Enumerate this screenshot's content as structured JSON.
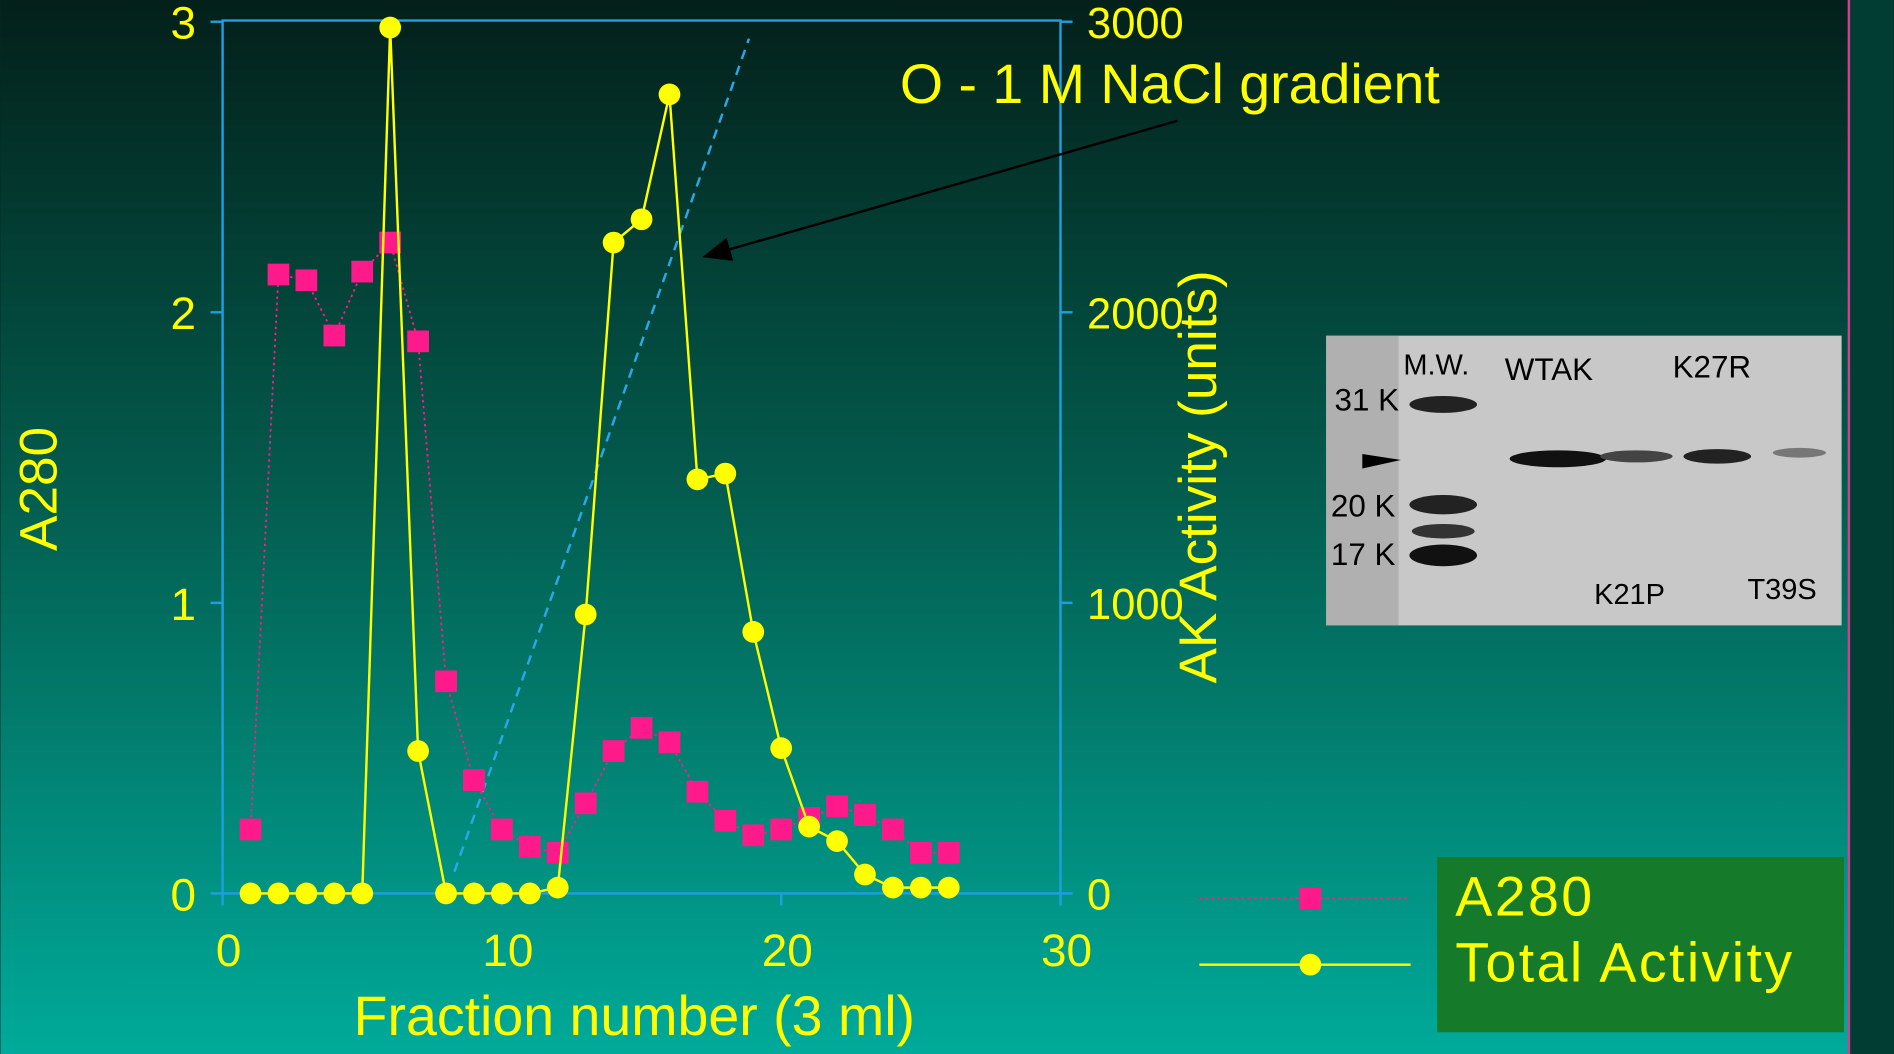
{
  "chart_data": {
    "type": "line",
    "annotation": "O   - 1 M NaCl gradient",
    "x_label": "Fraction  number  (3 ml)",
    "y_label": "A280",
    "y2_label": "AK  Activity  (units)",
    "x": [
      1,
      2,
      3,
      4,
      5,
      6,
      7,
      8,
      9,
      10,
      11,
      12,
      13,
      14,
      15,
      16,
      17,
      18,
      19,
      20,
      21,
      22,
      23,
      24,
      25,
      26
    ],
    "xlim": [
      0,
      30
    ],
    "xticks": [
      0,
      10,
      20,
      30
    ],
    "ylim": [
      0,
      3
    ],
    "yticks": [
      0,
      1,
      2,
      3
    ],
    "y2lim": [
      0,
      3000
    ],
    "y2ticks": [
      0,
      1000,
      2000,
      3000
    ],
    "series": [
      {
        "name": "A280",
        "color": "#ff1a8c",
        "marker": "square",
        "line_style": "dotted",
        "values": [
          0.22,
          2.13,
          2.11,
          1.92,
          2.14,
          2.24,
          1.9,
          0.73,
          0.39,
          0.22,
          0.16,
          0.14,
          0.31,
          0.49,
          0.57,
          0.52,
          0.35,
          0.25,
          0.2,
          0.22,
          0.26,
          0.3,
          0.27,
          0.22,
          0.14,
          0.14
        ]
      },
      {
        "name": "Total Activity",
        "color": "#ffff00",
        "marker": "circle",
        "line_style": "solid",
        "axis": "y2",
        "values": [
          0,
          0,
          0,
          0,
          0,
          2980,
          490,
          0,
          0,
          0,
          0,
          20,
          960,
          2240,
          2320,
          2750,
          1425,
          1445,
          900,
          500,
          230,
          180,
          65,
          20,
          20,
          20
        ]
      }
    ],
    "gel_labels": [
      "M.W.",
      "WTAK",
      "K27R",
      "31 K",
      "20 K",
      "17 K",
      "K21P",
      "T39S"
    ]
  }
}
